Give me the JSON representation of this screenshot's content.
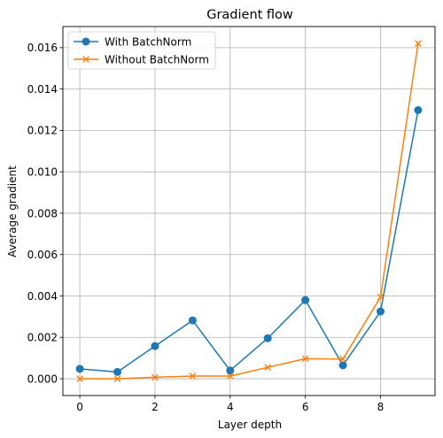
{
  "chart_data": {
    "type": "line",
    "title": "Gradient flow",
    "xlabel": "Layer depth",
    "ylabel": "Average gradient",
    "x": [
      0,
      1,
      2,
      3,
      4,
      5,
      6,
      7,
      8,
      9
    ],
    "xlim": [
      -0.45,
      9.45
    ],
    "ylim": [
      -0.00081,
      0.01702
    ],
    "xticks": [
      0,
      2,
      4,
      6,
      8
    ],
    "xtick_labels": [
      "0",
      "2",
      "4",
      "6",
      "8"
    ],
    "yticks": [
      0,
      0.002,
      0.004,
      0.006,
      0.008,
      0.01,
      0.012,
      0.014,
      0.016
    ],
    "ytick_labels": [
      "0.000",
      "0.002",
      "0.004",
      "0.006",
      "0.008",
      "0.010",
      "0.012",
      "0.014",
      "0.016"
    ],
    "grid": true,
    "legend_position": "top-left",
    "series": [
      {
        "name": "With BatchNorm",
        "marker": "circle",
        "color": "#1f77b4",
        "values": [
          0.00048,
          0.00033,
          0.00158,
          0.00282,
          0.0004,
          0.00196,
          0.0038,
          0.00065,
          0.00325,
          0.01298
        ]
      },
      {
        "name": "Without BatchNorm",
        "marker": "x",
        "color": "#ff7f0e",
        "values": [
          0.0,
          0.0,
          7e-05,
          0.00013,
          0.00013,
          0.00055,
          0.00097,
          0.00095,
          0.00395,
          0.0162
        ]
      }
    ]
  }
}
